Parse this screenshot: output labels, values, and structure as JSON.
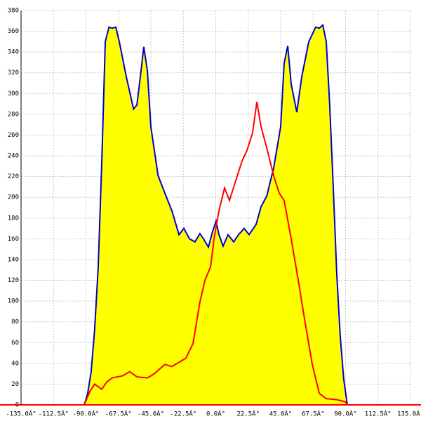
{
  "chart_data": {
    "type": "area",
    "xlim": [
      -135,
      135
    ],
    "ylim": [
      0,
      380
    ],
    "grid": true,
    "xticks": [
      {
        "value": -135,
        "label": "-135.0Â°"
      },
      {
        "value": -112.5,
        "label": "-112.5Â°"
      },
      {
        "value": -90,
        "label": "-90.0Â°"
      },
      {
        "value": -67.5,
        "label": "-67.5Â°"
      },
      {
        "value": -45,
        "label": "-45.0Â°"
      },
      {
        "value": -22.5,
        "label": "-22.5Â°"
      },
      {
        "value": 0,
        "label": "0.0Â°"
      },
      {
        "value": 22.5,
        "label": "22.5Â°"
      },
      {
        "value": 45,
        "label": "45.0Â°"
      },
      {
        "value": 67.5,
        "label": "67.5Â°"
      },
      {
        "value": 90,
        "label": "90.0Â°"
      },
      {
        "value": 112.5,
        "label": "112.5Â°"
      },
      {
        "value": 135,
        "label": "135.0Â°"
      }
    ],
    "yticks": [
      0,
      20,
      40,
      60,
      80,
      100,
      120,
      140,
      160,
      180,
      200,
      220,
      240,
      260,
      280,
      300,
      320,
      340,
      360,
      380
    ],
    "axis_color": "#ff0000",
    "series": [
      {
        "color": "#0000cc",
        "fill": "#ffff00",
        "x": [
          -91.2,
          -88.8,
          -86.4,
          -84,
          -81.5,
          -79,
          -76.6,
          -74,
          -71.8,
          -69.3,
          -66.9,
          -62,
          -57,
          -54.7,
          -52.3,
          -49.9,
          -47.4,
          -45,
          -40,
          -35.3,
          -30.4,
          -25.5,
          -22.1,
          -18.2,
          -14.4,
          -11,
          -8.5,
          -5.1,
          -2.2,
          0.2,
          2.2,
          5.1,
          8.5,
          12.4,
          15.8,
          19.7,
          23.1,
          28,
          31.4,
          35.3,
          40.1,
          45,
          47.4,
          49.9,
          52.3,
          56.2,
          59.6,
          64.5,
          69.3,
          71.8,
          74.2,
          76.6,
          79,
          81.5,
          83.9,
          86.3,
          88.7,
          91.2
        ],
        "values": [
          0,
          11,
          32,
          72,
          133,
          235,
          350,
          364,
          363,
          364,
          350,
          316,
          285,
          289,
          316,
          345,
          322,
          268,
          221,
          204,
          187,
          164,
          170,
          160,
          157,
          165,
          160,
          152,
          167,
          177,
          164,
          153,
          164,
          157,
          164,
          170,
          164,
          174,
          191,
          201,
          228,
          268,
          329,
          346,
          309,
          282,
          316,
          350,
          364,
          363,
          366,
          350,
          289,
          208,
          126,
          66,
          25,
          0
        ]
      },
      {
        "color": "#ff0000",
        "x": [
          -91.2,
          -87.3,
          -84,
          -79,
          -75.6,
          -71.8,
          -64.5,
          -59.6,
          -54.7,
          -47.4,
          -42.6,
          -35.3,
          -30.4,
          -25.5,
          -20.7,
          -15.8,
          -11,
          -7.5,
          -3.6,
          -1.2,
          2.2,
          6.1,
          9.5,
          13.4,
          18.2,
          21.6,
          25.5,
          28.5,
          31.4,
          35.3,
          40.1,
          44,
          47.4,
          52.3,
          57.2,
          62,
          66.9,
          71.8,
          76.6,
          83.9,
          89.7,
          91.2
        ],
        "values": [
          0,
          13,
          20,
          15,
          22,
          26,
          28,
          32,
          27,
          26,
          30,
          39,
          37,
          41,
          45,
          59,
          99,
          120,
          133,
          160,
          187,
          209,
          197,
          214,
          235,
          245,
          262,
          292,
          268,
          248,
          221,
          204,
          197,
          160,
          120,
          79,
          39,
          11,
          6,
          5,
          3,
          0
        ]
      }
    ]
  }
}
